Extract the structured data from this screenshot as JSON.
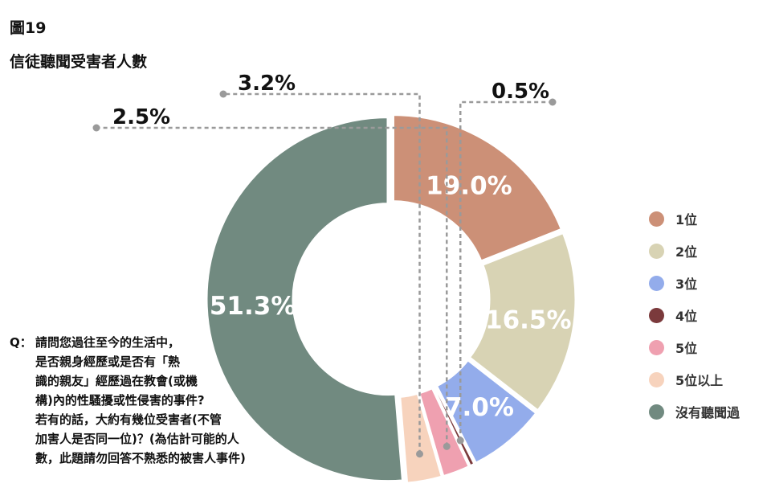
{
  "figure_number": "圖19",
  "title": "信徒聽聞受害者人數",
  "chart_data": {
    "type": "donut",
    "title": "信徒聽聞受害者人數",
    "categories": [
      "1位",
      "2位",
      "3位",
      "4位",
      "5位",
      "5位以上",
      "沒有聽聞過"
    ],
    "values": [
      19.0,
      16.5,
      7.0,
      0.5,
      2.5,
      3.2,
      51.3
    ],
    "data_labels": [
      "19.0%",
      "16.5%",
      "7.0%",
      "0.5%",
      "2.5%",
      "3.2%",
      "51.3%"
    ],
    "colors": [
      "#cc9077",
      "#d8d3b4",
      "#93aceb",
      "#7b3a3c",
      "#efa0b0",
      "#f7d3bd",
      "#718a80"
    ],
    "legend_placement": "right",
    "label_color": "#ffffff"
  },
  "question": {
    "prefix": "Q：",
    "lines": [
      "請問您過往至今的生活中，",
      "是否親身經歷或是否有「熟",
      "識的親友」經歷過在教會(或機",
      "構)內的性騷擾或性侵害的事件?",
      "若有的話，大約有幾位受害者(不管",
      "加害人是否同一位)？(為估計可能的人",
      "數，此題請勿回答不熟悉的被害人事件)"
    ]
  }
}
